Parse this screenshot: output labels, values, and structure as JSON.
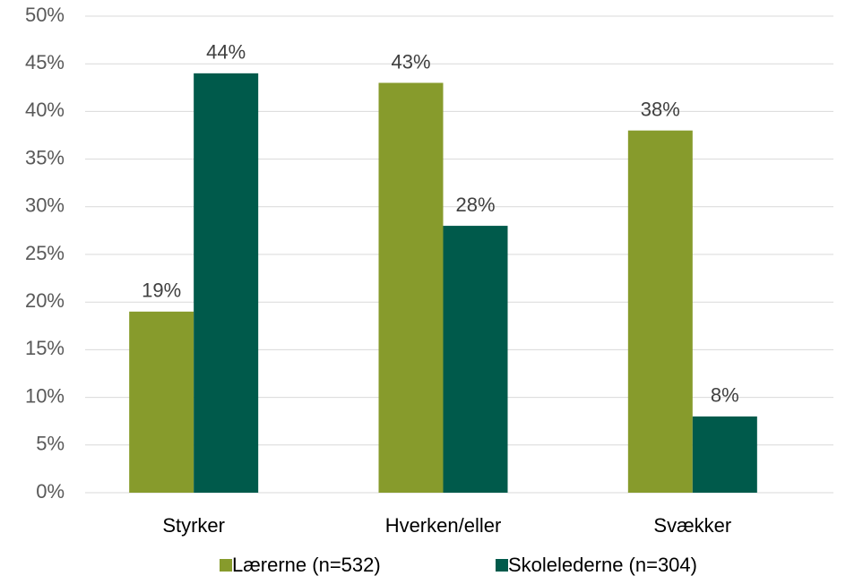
{
  "chart_data": {
    "type": "bar",
    "categories": [
      "Styrker",
      "Hverken/eller",
      "Svækker"
    ],
    "series": [
      {
        "name": "Lærerne (n=532)",
        "color": "#879b2c",
        "values": [
          19,
          43,
          38
        ],
        "value_labels": [
          "19%",
          "43%",
          "38%"
        ]
      },
      {
        "name": "Skolelederne (n=304)",
        "color": "#005a4b",
        "values": [
          44,
          28,
          8
        ],
        "value_labels": [
          "44%",
          "28%",
          "8%"
        ]
      }
    ],
    "ylim": [
      0,
      50
    ],
    "yticks": [
      {
        "value": 0,
        "label": "0%"
      },
      {
        "value": 5,
        "label": "5%"
      },
      {
        "value": 10,
        "label": "10%"
      },
      {
        "value": 15,
        "label": "15%"
      },
      {
        "value": 20,
        "label": "20%"
      },
      {
        "value": 25,
        "label": "25%"
      },
      {
        "value": 30,
        "label": "30%"
      },
      {
        "value": 35,
        "label": "35%"
      },
      {
        "value": 40,
        "label": "40%"
      },
      {
        "value": 45,
        "label": "45%"
      },
      {
        "value": 50,
        "label": "50%"
      }
    ],
    "grid": true,
    "legend": "bottom"
  }
}
